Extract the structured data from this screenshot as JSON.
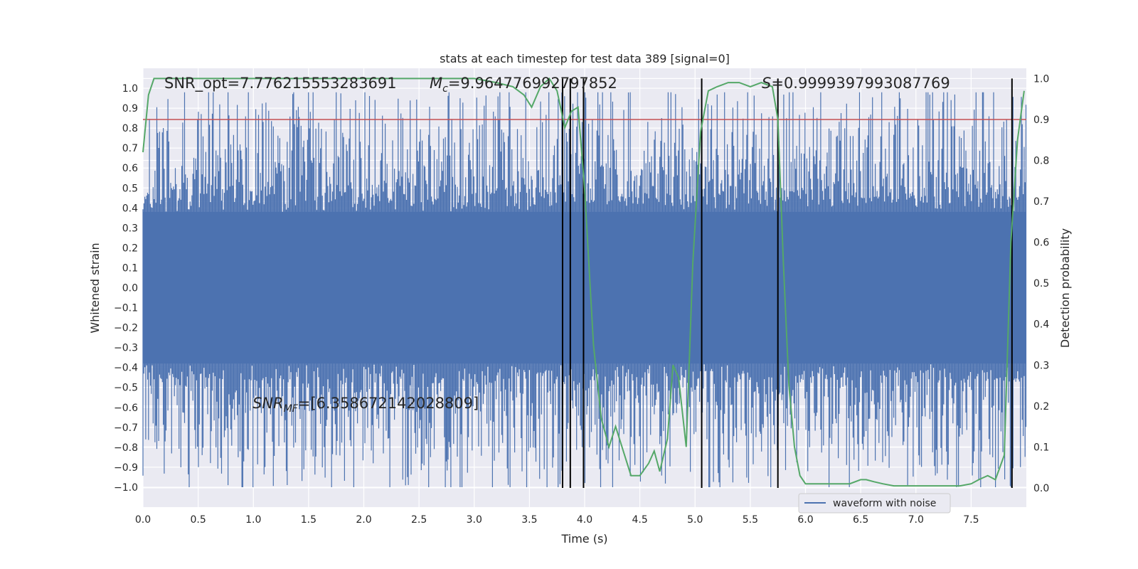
{
  "chart_data": {
    "type": "line",
    "title": "stats at each timestep for test data 389 [signal=0]",
    "xlabel": "Time (s)",
    "ylabel": "Whitened strain",
    "y2label": "Detection probability",
    "xlim": [
      0,
      8
    ],
    "ylim": [
      -1.1,
      1.1
    ],
    "y2lim": [
      -0.047,
      1.025
    ],
    "x_ticks": [
      "0.0",
      "0.5",
      "1.0",
      "1.5",
      "2.0",
      "2.5",
      "3.0",
      "3.5",
      "4.0",
      "4.5",
      "5.0",
      "5.5",
      "6.0",
      "6.5",
      "7.0",
      "7.5"
    ],
    "y_ticks": [
      "1.0",
      "0.9",
      "0.8",
      "0.7",
      "0.6",
      "0.5",
      "0.4",
      "0.3",
      "0.2",
      "0.1",
      "0.0",
      "−0.1",
      "−0.2",
      "−0.3",
      "−0.4",
      "−0.5",
      "−0.6",
      "−0.7",
      "−0.8",
      "−0.9",
      "−1.0"
    ],
    "y2_ticks": [
      "1.0",
      "0.9",
      "0.8",
      "0.7",
      "0.6",
      "0.5",
      "0.4",
      "0.3",
      "0.2",
      "0.1",
      "0.0"
    ],
    "grid": true,
    "legend_position": "lower-right",
    "annotations": {
      "snr_opt": "SNR_opt=7.776215553283691",
      "mc": "=9.964776992797852",
      "s": "=0.9999397993087769",
      "snr_mf": "=[6.358672142028809]"
    },
    "series": [
      {
        "name": "waveform with noise",
        "color": "#4c72b0",
        "x": [
          0.0,
          8.0
        ],
        "y": [
          -0.38,
          0.38
        ]
      },
      {
        "color": "#55a868",
        "x": [
          0.0,
          0.05,
          0.1,
          0.2,
          0.5,
          1.0,
          1.5,
          2.0,
          2.5,
          3.0,
          3.2,
          3.35,
          3.45,
          3.52,
          3.6,
          3.68,
          3.75,
          3.82,
          3.88,
          3.94,
          4.0,
          4.08,
          4.15,
          4.22,
          4.28,
          4.35,
          4.42,
          4.5,
          4.58,
          4.63,
          4.68,
          4.75,
          4.8,
          4.85,
          4.92,
          4.98,
          5.05,
          5.12,
          5.2,
          5.3,
          5.4,
          5.5,
          5.6,
          5.7,
          5.75,
          5.8,
          5.85,
          5.9,
          5.95,
          6.0,
          6.1,
          6.2,
          6.3,
          6.4,
          6.5,
          6.55,
          6.62,
          6.7,
          6.8,
          6.9,
          7.0,
          7.1,
          7.2,
          7.3,
          7.4,
          7.5,
          7.57,
          7.65,
          7.72,
          7.8,
          7.86,
          7.92,
          7.98
        ],
        "y": [
          0.82,
          0.96,
          1.0,
          1.0,
          1.0,
          1.0,
          1.0,
          1.0,
          1.0,
          1.0,
          0.99,
          0.98,
          0.96,
          0.93,
          0.98,
          1.0,
          0.97,
          0.88,
          0.92,
          0.93,
          0.73,
          0.35,
          0.17,
          0.1,
          0.15,
          0.09,
          0.03,
          0.03,
          0.06,
          0.09,
          0.04,
          0.12,
          0.3,
          0.27,
          0.1,
          0.55,
          0.87,
          0.97,
          0.98,
          0.99,
          0.99,
          0.98,
          0.99,
          0.98,
          0.9,
          0.55,
          0.25,
          0.1,
          0.03,
          0.01,
          0.01,
          0.01,
          0.01,
          0.01,
          0.02,
          0.02,
          0.015,
          0.01,
          0.005,
          0.005,
          0.005,
          0.005,
          0.005,
          0.005,
          0.005,
          0.01,
          0.02,
          0.03,
          0.02,
          0.08,
          0.6,
          0.85,
          0.97
        ]
      }
    ],
    "threshold": {
      "value": 0.9,
      "color": "#c44e52"
    },
    "event_lines": [
      3.8,
      3.87,
      3.99,
      5.06,
      5.75,
      7.87
    ]
  }
}
